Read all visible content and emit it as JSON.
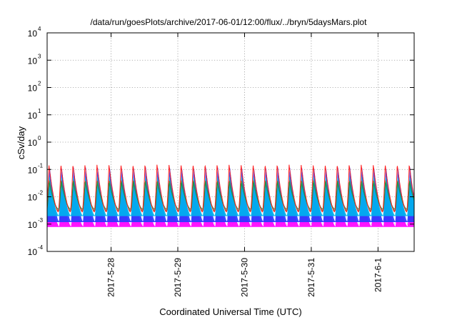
{
  "chart_data": {
    "type": "area",
    "title": "/data/run/goesPlots/archive/2017-06-01/12:00/flux/../bryn/5daysMars.plot",
    "xlabel": "Coordinated Universal Time (UTC)",
    "ylabel": "cSv/day",
    "y_scale": "log",
    "ylim": [
      0.0001,
      10000
    ],
    "y_ticks": [
      {
        "base": "10",
        "exp": "4",
        "value": 10000
      },
      {
        "base": "10",
        "exp": "3",
        "value": 1000
      },
      {
        "base": "10",
        "exp": "2",
        "value": 100
      },
      {
        "base": "10",
        "exp": "1",
        "value": 10
      },
      {
        "base": "10",
        "exp": "0",
        "value": 1
      },
      {
        "base": "10",
        "exp": "-1",
        "value": 0.1
      },
      {
        "base": "10",
        "exp": "-2",
        "value": 0.01
      },
      {
        "base": "10",
        "exp": "-3",
        "value": 0.001
      },
      {
        "base": "10",
        "exp": "-4",
        "value": 0.0001
      }
    ],
    "xlim": [
      "2017-05-27T01:00",
      "2017-06-01T13:00"
    ],
    "x_ticks": [
      "2017-5-28",
      "2017-5-29",
      "2017-5-30",
      "2017-5-31",
      "2017-6-1"
    ],
    "x_tick_dates": [
      "2017-05-28",
      "2017-05-29",
      "2017-05-30",
      "2017-05-31",
      "2017-06-01"
    ],
    "grid": true,
    "oscillation_period_hours": 4.32,
    "series": [
      {
        "color": "#ff00ff",
        "min": 0.0008,
        "max": 0.018,
        "fill": true
      },
      {
        "color": "#2a3bff",
        "min": 0.0012,
        "max": 0.12,
        "fill": true
      },
      {
        "color": "#00b2ee",
        "min": 0.002,
        "max": 0.055,
        "fill": true
      },
      {
        "color": "#8a5a1a",
        "min": 0.003,
        "max": 0.04,
        "fill": false
      },
      {
        "color": "#0aa050",
        "min": 0.0035,
        "max": 0.035,
        "fill": false
      },
      {
        "color": "#ff2020",
        "min": 0.0028,
        "max": 0.15,
        "fill": false
      }
    ]
  }
}
